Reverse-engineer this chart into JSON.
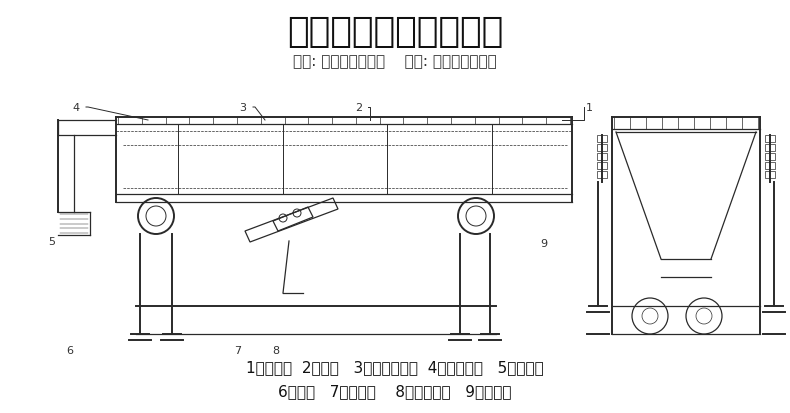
{
  "title": "外形结构图及技术参数",
  "subtitle": "诚信: 为自己创造价值    责任: 为用户创造价值",
  "legend_line1": "1、进料口  2、筛箱   3、密封防尘盖  4、隔振弹簧   5、出料口",
  "legend_line2": "6、支架   7、电机板    8、振动电机   9、筛网架",
  "bg_color": "#ffffff",
  "title_fontsize": 26,
  "subtitle_fontsize": 11,
  "legend_fontsize": 11,
  "diagram_color": "#2a2a2a",
  "label_color": "#333333"
}
